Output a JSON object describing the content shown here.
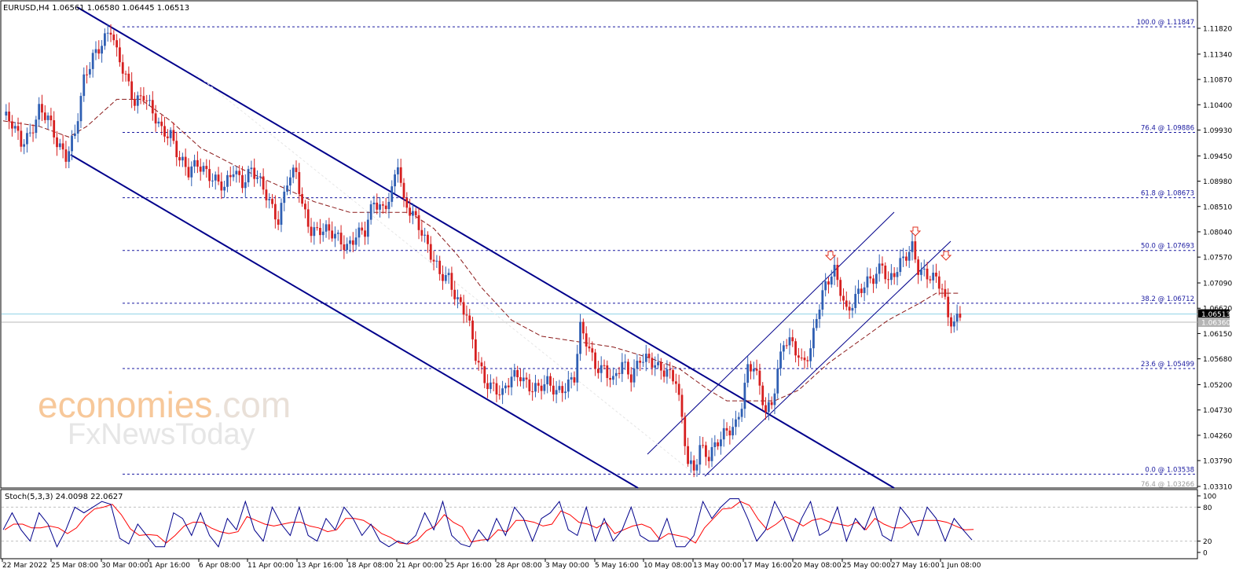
{
  "symbol_header": "EURUSD,H4  1.06561 1.06580 1.06445 1.06513",
  "watermark": {
    "brand": "economies",
    "tld": ".com",
    "sub": "FxNewsToday"
  },
  "price_axis": {
    "ticks": [
      "1.11820",
      "1.11340",
      "1.10870",
      "1.10400",
      "1.09930",
      "1.09450",
      "1.08980",
      "1.08510",
      "1.08040",
      "1.07570",
      "1.07090",
      "1.06620",
      "1.06150",
      "1.05680",
      "1.05200",
      "1.04730",
      "1.04260",
      "1.03790",
      "1.03310"
    ],
    "current_price_label": "1.06513",
    "gray_price_label": "1.06360"
  },
  "fib_levels": [
    {
      "label": "100.0 @ 1.11847",
      "price": 1.11847
    },
    {
      "label": "76.4 @ 1.09886",
      "price": 1.09886
    },
    {
      "label": "61.8 @ 1.08673",
      "price": 1.08673
    },
    {
      "label": "50.0 @ 1.07693",
      "price": 1.07693
    },
    {
      "label": "38.2 @ 1.06712",
      "price": 1.06712
    },
    {
      "label": "23.6 @ 1.05499",
      "price": 1.05499
    },
    {
      "label": "0.0 @ 1.03538",
      "price": 1.03538
    },
    {
      "label": "76.4 @ 1.03266",
      "price": 1.03266
    }
  ],
  "stoch_panel": {
    "title": "Stoch(5,3,3) 24.0098 22.0627",
    "ticks": [
      "100",
      "80",
      "20",
      "0"
    ]
  },
  "time_axis": [
    "22 Mar 2022",
    "25 Mar 08:00",
    "30 Mar 00:00",
    "1 Apr 16:00",
    "6 Apr 08:00",
    "11 Apr 00:00",
    "13 Apr 16:00",
    "18 Apr 08:00",
    "21 Apr 00:00",
    "25 Apr 16:00",
    "28 Apr 08:00",
    "3 May 00:00",
    "5 May 16:00",
    "10 May 08:00",
    "13 May 00:00",
    "17 May 16:00",
    "20 May 08:00",
    "25 May 00:00",
    "27 May 16:00",
    "1 Jun 08:00"
  ],
  "colors": {
    "bull": "#2f5fb3",
    "bear": "#d61f1f",
    "channel": "#00008b",
    "fib": "#1a1aa0",
    "ma": "#8b1a1a",
    "stoch_main": "#00008b",
    "stoch_signal": "#ff0000"
  },
  "chart_data": {
    "type": "candlestick",
    "instrument": "EURUSD",
    "timeframe": "H4",
    "header_ohlc": {
      "open": 1.06561,
      "high": 1.0658,
      "low": 1.06445,
      "close": 1.06513
    },
    "y_range": [
      1.0331,
      1.1195
    ],
    "price_path": [
      [
        0,
        1.102
      ],
      [
        3,
        1.1
      ],
      [
        6,
        1.097
      ],
      [
        9,
        1.099
      ],
      [
        12,
        1.103
      ],
      [
        15,
        1.101
      ],
      [
        18,
        1.097
      ],
      [
        21,
        1.095
      ],
      [
        24,
        1.0985
      ],
      [
        27,
        1.108
      ],
      [
        30,
        1.113
      ],
      [
        33,
        1.116
      ],
      [
        36,
        1.118
      ],
      [
        38,
        1.113
      ],
      [
        41,
        1.109
      ],
      [
        44,
        1.105
      ],
      [
        47,
        1.106
      ],
      [
        50,
        1.102
      ],
      [
        53,
        1.099
      ],
      [
        56,
        1.099
      ],
      [
        59,
        1.094
      ],
      [
        62,
        1.091
      ],
      [
        65,
        1.093
      ],
      [
        68,
        1.092
      ],
      [
        71,
        1.09
      ],
      [
        74,
        1.088
      ],
      [
        77,
        1.092
      ],
      [
        80,
        1.09
      ],
      [
        83,
        1.092
      ],
      [
        86,
        1.089
      ],
      [
        89,
        1.086
      ],
      [
        92,
        1.083
      ],
      [
        95,
        1.09
      ],
      [
        98,
        1.091
      ],
      [
        100,
        1.085
      ],
      [
        103,
        1.081
      ],
      [
        106,
        1.081
      ],
      [
        109,
        1.08
      ],
      [
        112,
        1.079
      ],
      [
        115,
        1.078
      ],
      [
        118,
        1.08
      ],
      [
        121,
        1.08
      ],
      [
        124,
        1.086
      ],
      [
        127,
        1.085
      ],
      [
        130,
        1.088
      ],
      [
        132,
        1.093
      ],
      [
        134,
        1.085
      ],
      [
        137,
        1.084
      ],
      [
        140,
        1.081
      ],
      [
        143,
        1.076
      ],
      [
        146,
        1.072
      ],
      [
        149,
        1.072
      ],
      [
        152,
        1.068
      ],
      [
        155,
        1.065
      ],
      [
        158,
        1.057
      ],
      [
        161,
        1.053
      ],
      [
        164,
        1.052
      ],
      [
        167,
        1.05
      ],
      [
        170,
        1.053
      ],
      [
        173,
        1.054
      ],
      [
        176,
        1.052
      ],
      [
        179,
        1.051
      ],
      [
        182,
        1.052
      ],
      [
        185,
        1.051
      ],
      [
        188,
        1.052
      ],
      [
        191,
        1.053
      ],
      [
        193,
        1.062
      ],
      [
        195,
        1.06
      ],
      [
        198,
        1.056
      ],
      [
        201,
        1.055
      ],
      [
        204,
        1.052
      ],
      [
        207,
        1.056
      ],
      [
        210,
        1.054
      ],
      [
        213,
        1.057
      ],
      [
        216,
        1.056
      ],
      [
        219,
        1.055
      ],
      [
        222,
        1.055
      ],
      [
        225,
        1.053
      ],
      [
        227,
        1.045
      ],
      [
        229,
        1.037
      ],
      [
        231,
        1.036
      ],
      [
        233,
        1.041
      ],
      [
        236,
        1.039
      ],
      [
        239,
        1.041
      ],
      [
        242,
        1.043
      ],
      [
        245,
        1.045
      ],
      [
        247,
        1.049
      ],
      [
        249,
        1.055
      ],
      [
        251,
        1.055
      ],
      [
        253,
        1.051
      ],
      [
        255,
        1.047
      ],
      [
        257,
        1.049
      ],
      [
        259,
        1.055
      ],
      [
        261,
        1.06
      ],
      [
        264,
        1.059
      ],
      [
        267,
        1.056
      ],
      [
        270,
        1.059
      ],
      [
        272,
        1.065
      ],
      [
        275,
        1.07
      ],
      [
        278,
        1.073
      ],
      [
        280,
        1.07
      ],
      [
        282,
        1.066
      ],
      [
        285,
        1.068
      ],
      [
        288,
        1.07
      ],
      [
        291,
        1.072
      ],
      [
        294,
        1.075
      ],
      [
        296,
        1.071
      ],
      [
        299,
        1.073
      ],
      [
        302,
        1.076
      ],
      [
        304,
        1.078
      ],
      [
        306,
        1.074
      ],
      [
        309,
        1.072
      ],
      [
        312,
        1.071
      ],
      [
        314,
        1.07
      ],
      [
        316,
        1.065
      ],
      [
        318,
        1.064
      ],
      [
        320,
        1.065
      ]
    ],
    "moving_average_path": [
      [
        0,
        1.101
      ],
      [
        12,
        1.1
      ],
      [
        22,
        1.098
      ],
      [
        28,
        1.1
      ],
      [
        32,
        1.102
      ],
      [
        38,
        1.105
      ],
      [
        46,
        1.105
      ],
      [
        56,
        1.101
      ],
      [
        66,
        1.096
      ],
      [
        80,
        1.092
      ],
      [
        92,
        1.089
      ],
      [
        104,
        1.086
      ],
      [
        116,
        1.084
      ],
      [
        126,
        1.084
      ],
      [
        136,
        1.084
      ],
      [
        144,
        1.081
      ],
      [
        152,
        1.076
      ],
      [
        160,
        1.07
      ],
      [
        170,
        1.064
      ],
      [
        180,
        1.061
      ],
      [
        192,
        1.06
      ],
      [
        204,
        1.059
      ],
      [
        216,
        1.057
      ],
      [
        226,
        1.055
      ],
      [
        236,
        1.051
      ],
      [
        242,
        1.049
      ],
      [
        250,
        1.049
      ],
      [
        258,
        1.049
      ],
      [
        266,
        1.051
      ],
      [
        276,
        1.056
      ],
      [
        286,
        1.06
      ],
      [
        296,
        1.064
      ],
      [
        306,
        1.067
      ],
      [
        312,
        1.069
      ],
      [
        320,
        1.069
      ]
    ],
    "stochastic": {
      "main_line_points": [
        [
          0,
          40
        ],
        [
          3,
          70
        ],
        [
          6,
          40
        ],
        [
          9,
          20
        ],
        [
          12,
          70
        ],
        [
          15,
          50
        ],
        [
          18,
          10
        ],
        [
          21,
          40
        ],
        [
          24,
          80
        ],
        [
          27,
          70
        ],
        [
          30,
          80
        ],
        [
          33,
          90
        ],
        [
          36,
          85
        ],
        [
          39,
          25
        ],
        [
          42,
          15
        ],
        [
          45,
          50
        ],
        [
          48,
          30
        ],
        [
          51,
          10
        ],
        [
          54,
          10
        ],
        [
          57,
          70
        ],
        [
          60,
          60
        ],
        [
          63,
          30
        ],
        [
          66,
          70
        ],
        [
          69,
          30
        ],
        [
          72,
          10
        ],
        [
          75,
          60
        ],
        [
          78,
          40
        ],
        [
          81,
          90
        ],
        [
          84,
          40
        ],
        [
          87,
          20
        ],
        [
          90,
          80
        ],
        [
          93,
          50
        ],
        [
          96,
          30
        ],
        [
          99,
          80
        ],
        [
          102,
          30
        ],
        [
          105,
          20
        ],
        [
          108,
          60
        ],
        [
          111,
          40
        ],
        [
          114,
          80
        ],
        [
          117,
          60
        ],
        [
          120,
          30
        ],
        [
          123,
          50
        ],
        [
          126,
          20
        ],
        [
          129,
          10
        ],
        [
          132,
          20
        ],
        [
          135,
          15
        ],
        [
          138,
          30
        ],
        [
          141,
          70
        ],
        [
          144,
          40
        ],
        [
          147,
          90
        ],
        [
          150,
          30
        ],
        [
          153,
          15
        ],
        [
          156,
          10
        ],
        [
          159,
          40
        ],
        [
          162,
          20
        ],
        [
          165,
          60
        ],
        [
          168,
          30
        ],
        [
          171,
          80
        ],
        [
          174,
          60
        ],
        [
          177,
          20
        ],
        [
          180,
          60
        ],
        [
          183,
          70
        ],
        [
          186,
          90
        ],
        [
          189,
          40
        ],
        [
          192,
          30
        ],
        [
          195,
          80
        ],
        [
          198,
          20
        ],
        [
          201,
          60
        ],
        [
          204,
          20
        ],
        [
          207,
          40
        ],
        [
          210,
          80
        ],
        [
          213,
          30
        ],
        [
          216,
          20
        ],
        [
          219,
          20
        ],
        [
          222,
          60
        ],
        [
          225,
          10
        ],
        [
          228,
          10
        ],
        [
          231,
          30
        ],
        [
          234,
          90
        ],
        [
          237,
          60
        ],
        [
          240,
          80
        ],
        [
          243,
          95
        ],
        [
          246,
          95
        ],
        [
          249,
          60
        ],
        [
          252,
          20
        ],
        [
          255,
          40
        ],
        [
          258,
          90
        ],
        [
          261,
          60
        ],
        [
          264,
          20
        ],
        [
          267,
          60
        ],
        [
          270,
          90
        ],
        [
          273,
          30
        ],
        [
          276,
          40
        ],
        [
          279,
          80
        ],
        [
          282,
          20
        ],
        [
          285,
          60
        ],
        [
          288,
          40
        ],
        [
          291,
          80
        ],
        [
          294,
          30
        ],
        [
          297,
          20
        ],
        [
          300,
          80
        ],
        [
          303,
          60
        ],
        [
          306,
          30
        ],
        [
          309,
          80
        ],
        [
          312,
          60
        ],
        [
          315,
          20
        ],
        [
          318,
          60
        ],
        [
          321,
          40
        ],
        [
          324,
          22
        ]
      ],
      "levels": [
        80,
        20
      ]
    }
  }
}
